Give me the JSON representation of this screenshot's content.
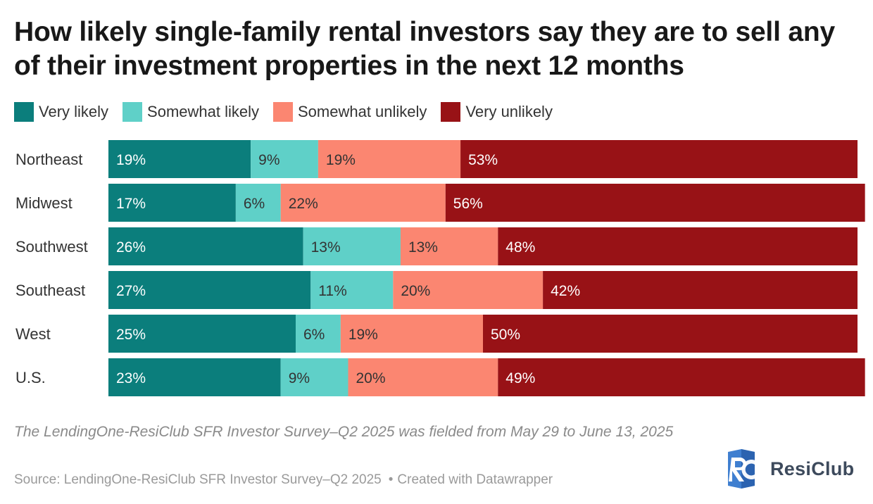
{
  "title": "How likely single-family rental investors say they are to sell any of their investment properties in the next 12 months",
  "legend": [
    {
      "label": "Very likely",
      "color": "#0b7e7c"
    },
    {
      "label": "Somewhat likely",
      "color": "#5fd0c8"
    },
    {
      "label": "Somewhat unlikely",
      "color": "#fb8671"
    },
    {
      "label": "Very unlikely",
      "color": "#981216"
    }
  ],
  "chart_data": {
    "type": "bar",
    "orientation": "horizontal",
    "stacked": true,
    "categories": [
      "Northeast",
      "Midwest",
      "Southwest",
      "Southeast",
      "West",
      "U.S."
    ],
    "series": [
      {
        "name": "Very likely",
        "color": "#0b7e7c",
        "values": [
          19,
          17,
          26,
          27,
          25,
          23
        ],
        "labels": [
          "19%",
          "17%",
          "26%",
          "27%",
          "25%",
          "23%"
        ]
      },
      {
        "name": "Somewhat likely",
        "color": "#5fd0c8",
        "values": [
          9,
          6,
          13,
          11,
          6,
          9
        ],
        "labels": [
          "9%",
          "6%",
          "13%",
          "11%",
          "6%",
          "9%"
        ]
      },
      {
        "name": "Somewhat unlikely",
        "color": "#fb8671",
        "values": [
          19,
          22,
          13,
          20,
          19,
          20
        ],
        "labels": [
          "19%",
          "22%",
          "13%",
          "20%",
          "19%",
          "20%"
        ]
      },
      {
        "name": "Very unlikely",
        "color": "#981216",
        "values": [
          53,
          56,
          48,
          42,
          50,
          49
        ],
        "labels": [
          "53%",
          "56%",
          "48%",
          "42%",
          "50%",
          "49%"
        ]
      }
    ],
    "xlim": [
      0,
      100
    ],
    "legend_position": "top-left"
  },
  "footnote": "The LendingOne-ResiClub SFR Investor Survey–Q2 2025 was fielded from May 29 to June 13, 2025",
  "source": {
    "text": "Source: LendingOne-ResiClub SFR Investor Survey–Q2 2025",
    "separator": "•",
    "credit": "Created with Datawrapper"
  },
  "logo": {
    "mark": "RC",
    "text": "ResiClub"
  }
}
